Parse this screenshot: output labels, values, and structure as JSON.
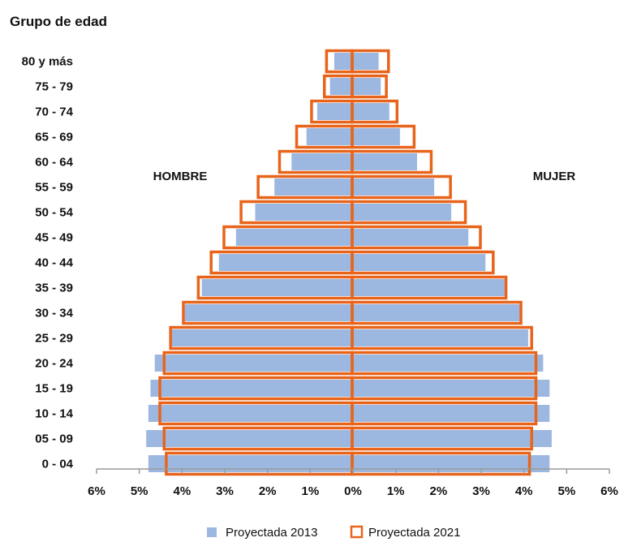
{
  "chart_data": {
    "type": "bar",
    "subtype": "population-pyramid",
    "title": "",
    "axis_title_y": "Grupo de edad",
    "left_label": "HOMBRE",
    "right_label": "MUJER",
    "categories": [
      "80 y más",
      "75 - 79",
      "70 - 74",
      "65 - 69",
      "60 - 64",
      "55 - 59",
      "50 - 54",
      "45 - 49",
      "40 - 44",
      "35 - 39",
      "30 - 34",
      "25 - 29",
      "20 - 24",
      "15 - 19",
      "10 - 14",
      "05 - 09",
      "0 - 04"
    ],
    "x_ticks": [
      "6%",
      "5%",
      "4%",
      "3%",
      "2%",
      "1%",
      "0%",
      "1%",
      "2%",
      "3%",
      "4%",
      "5%",
      "6%"
    ],
    "xlim": [
      -6,
      6
    ],
    "unit": "%",
    "series": [
      {
        "name": "Proyectada 2013",
        "style": "filled",
        "color": "#9db8e0",
        "hombre": [
          0.4,
          0.5,
          0.8,
          1.05,
          1.4,
          1.8,
          2.25,
          2.7,
          3.1,
          3.5,
          3.9,
          4.2,
          4.6,
          4.7,
          4.75,
          4.8,
          4.75
        ],
        "mujer": [
          0.6,
          0.65,
          0.85,
          1.1,
          1.5,
          1.9,
          2.3,
          2.7,
          3.1,
          3.55,
          3.9,
          4.1,
          4.45,
          4.6,
          4.6,
          4.65,
          4.6
        ]
      },
      {
        "name": "Proyectada 2021",
        "style": "outline",
        "color": "#e8641b",
        "hombre": [
          0.6,
          0.65,
          0.95,
          1.3,
          1.7,
          2.2,
          2.6,
          3.0,
          3.3,
          3.6,
          3.95,
          4.25,
          4.4,
          4.5,
          4.5,
          4.4,
          4.35
        ],
        "mujer": [
          0.85,
          0.8,
          1.05,
          1.45,
          1.85,
          2.3,
          2.65,
          3.0,
          3.3,
          3.6,
          3.95,
          4.2,
          4.3,
          4.3,
          4.3,
          4.2,
          4.15
        ]
      }
    ],
    "grid": false,
    "legend_position": "bottom"
  }
}
